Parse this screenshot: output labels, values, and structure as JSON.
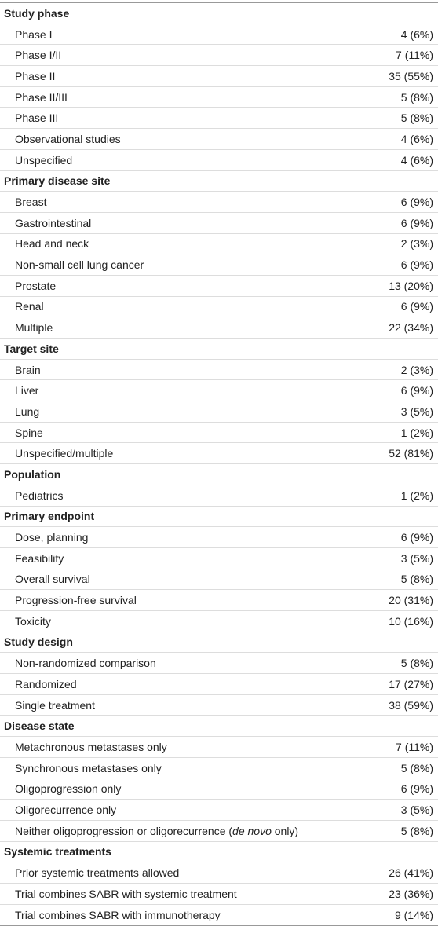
{
  "table": {
    "sections": [
      {
        "title": "Study phase",
        "rows": [
          [
            "Phase I",
            "4 (6%)"
          ],
          [
            "Phase I/II",
            "7 (11%)"
          ],
          [
            "Phase II",
            "35 (55%)"
          ],
          [
            "Phase II/III",
            "5 (8%)"
          ],
          [
            "Phase III",
            "5 (8%)"
          ],
          [
            "Observational studies",
            "4 (6%)"
          ],
          [
            "Unspecified",
            "4 (6%)"
          ]
        ]
      },
      {
        "title": "Primary disease site",
        "rows": [
          [
            "Breast",
            "6 (9%)"
          ],
          [
            "Gastrointestinal",
            "6 (9%)"
          ],
          [
            "Head and neck",
            "2 (3%)"
          ],
          [
            "Non-small cell lung cancer",
            "6 (9%)"
          ],
          [
            "Prostate",
            "13 (20%)"
          ],
          [
            "Renal",
            "6 (9%)"
          ],
          [
            "Multiple",
            "22 (34%)"
          ]
        ]
      },
      {
        "title": "Target site",
        "rows": [
          [
            "Brain",
            "2 (3%)"
          ],
          [
            "Liver",
            "6 (9%)"
          ],
          [
            "Lung",
            "3 (5%)"
          ],
          [
            "Spine",
            "1 (2%)"
          ],
          [
            "Unspecified/multiple",
            "52 (81%)"
          ]
        ]
      },
      {
        "title": "Population",
        "rows": [
          [
            "Pediatrics",
            "1 (2%)"
          ]
        ]
      },
      {
        "title": "Primary endpoint",
        "rows": [
          [
            "Dose, planning",
            "6 (9%)"
          ],
          [
            "Feasibility",
            "3 (5%)"
          ],
          [
            "Overall survival",
            "5 (8%)"
          ],
          [
            "Progression-free survival",
            "20 (31%)"
          ],
          [
            "Toxicity",
            "10 (16%)"
          ]
        ]
      },
      {
        "title": "Study design",
        "rows": [
          [
            "Non-randomized comparison",
            "5 (8%)"
          ],
          [
            "Randomized",
            "17 (27%)"
          ],
          [
            "Single treatment",
            "38 (59%)"
          ]
        ]
      },
      {
        "title": "Disease state",
        "rows": [
          [
            "Metachronous metastases only",
            "7 (11%)"
          ],
          [
            "Synchronous metastases only",
            "5 (8%)"
          ],
          [
            "Oligoprogression only",
            "6 (9%)"
          ],
          [
            "Oligorecurrence only",
            "3 (5%)"
          ],
          [
            [
              {
                "text": "Neither oligoprogression or oligorecurrence ("
              },
              {
                "text": "de novo",
                "italic": true
              },
              {
                "text": " only)"
              }
            ],
            "5 (8%)"
          ]
        ]
      },
      {
        "title": "Systemic treatments",
        "rows": [
          [
            "Prior systemic treatments allowed",
            "26 (41%)"
          ],
          [
            "Trial combines SABR with systemic treatment",
            "23 (36%)"
          ],
          [
            "Trial combines SABR with immunotherapy",
            "9 (14%)"
          ]
        ]
      }
    ]
  }
}
